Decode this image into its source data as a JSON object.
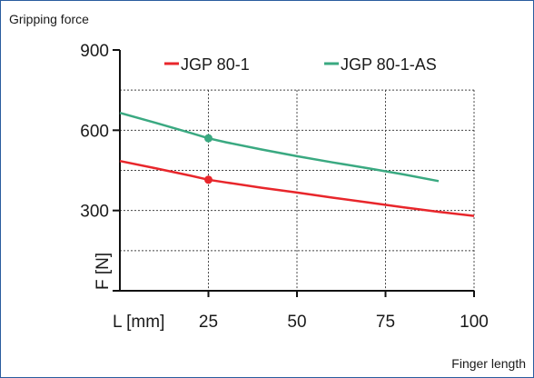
{
  "chart_data": {
    "type": "line",
    "title": "Gripping force",
    "xlabel": "Finger length",
    "ylabel": "F [N]",
    "x_axis_name": "L [mm]",
    "xlim": [
      0,
      100
    ],
    "ylim": [
      0,
      900
    ],
    "xticks": [
      25,
      50,
      75,
      100
    ],
    "yticks": [
      300,
      600,
      900
    ],
    "grid": true,
    "legend_position": "top",
    "series": [
      {
        "name": "JGP 80-1",
        "color": "#e8262b",
        "x": [
          0,
          10,
          20,
          25,
          30,
          40,
          50,
          60,
          70,
          80,
          90,
          100
        ],
        "y": [
          485,
          458,
          430,
          415,
          405,
          385,
          367,
          348,
          330,
          312,
          295,
          280
        ],
        "markers": [
          {
            "x": 25,
            "y": 415
          }
        ]
      },
      {
        "name": "JGP 80-1-AS",
        "color": "#3aa981",
        "x": [
          0,
          10,
          20,
          25,
          30,
          40,
          50,
          60,
          70,
          80,
          90
        ],
        "y": [
          665,
          628,
          590,
          570,
          555,
          528,
          503,
          480,
          458,
          435,
          410
        ],
        "markers": [
          {
            "x": 25,
            "y": 570
          }
        ]
      }
    ]
  }
}
